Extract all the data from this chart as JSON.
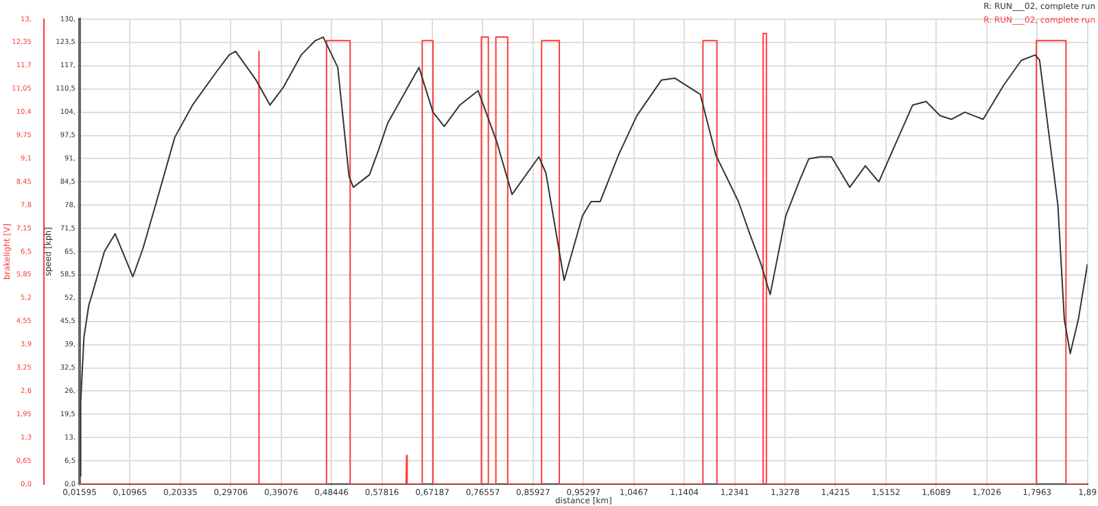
{
  "chart_data": {
    "type": "line",
    "xlabel": "distance [km]",
    "ylabel": "speed [kph]",
    "y2label": "brakelight [V]",
    "legend": "top right",
    "grid": true,
    "marker": "none",
    "line_style": "solid",
    "xlim": [
      0.01595,
      1.89
    ],
    "xticks": [
      {
        "value": 0.01595,
        "label": "0,01595"
      },
      {
        "value": 0.10965,
        "label": "0,10965"
      },
      {
        "value": 0.20335,
        "label": "0,20335"
      },
      {
        "value": 0.29706,
        "label": "0,29706"
      },
      {
        "value": 0.39076,
        "label": "0,39076"
      },
      {
        "value": 0.48446,
        "label": "0,48446"
      },
      {
        "value": 0.57816,
        "label": "0,57816"
      },
      {
        "value": 0.67187,
        "label": "0,67187"
      },
      {
        "value": 0.76557,
        "label": "0,76557"
      },
      {
        "value": 0.85927,
        "label": "0,85927"
      },
      {
        "value": 0.95297,
        "label": "0,95297"
      },
      {
        "value": 1.0467,
        "label": "1,0467"
      },
      {
        "value": 1.1404,
        "label": "1,1404"
      },
      {
        "value": 1.2341,
        "label": "1,2341"
      },
      {
        "value": 1.3278,
        "label": "1,3278"
      },
      {
        "value": 1.4215,
        "label": "1,4215"
      },
      {
        "value": 1.5152,
        "label": "1,5152"
      },
      {
        "value": 1.6089,
        "label": "1,6089"
      },
      {
        "value": 1.7026,
        "label": "1,7026"
      },
      {
        "value": 1.7963,
        "label": "1,7963"
      },
      {
        "value": 1.89,
        "label": "1,89"
      }
    ],
    "ylim": [
      0,
      130
    ],
    "yticks": [
      {
        "value": 0,
        "label": "0,0"
      },
      {
        "value": 6.5,
        "label": "6,5"
      },
      {
        "value": 13,
        "label": "13,"
      },
      {
        "value": 19.5,
        "label": "19,5"
      },
      {
        "value": 26,
        "label": "26,"
      },
      {
        "value": 32.5,
        "label": "32,5"
      },
      {
        "value": 39,
        "label": "39,"
      },
      {
        "value": 45.5,
        "label": "45,5"
      },
      {
        "value": 52,
        "label": "52,"
      },
      {
        "value": 58.5,
        "label": "58,5"
      },
      {
        "value": 65,
        "label": "65,"
      },
      {
        "value": 71.5,
        "label": "71,5"
      },
      {
        "value": 78,
        "label": "78,"
      },
      {
        "value": 84.5,
        "label": "84,5"
      },
      {
        "value": 91,
        "label": "91,"
      },
      {
        "value": 97.5,
        "label": "97,5"
      },
      {
        "value": 104,
        "label": "104,"
      },
      {
        "value": 110.5,
        "label": "110,5"
      },
      {
        "value": 117,
        "label": "117,"
      },
      {
        "value": 123.5,
        "label": "123,5"
      },
      {
        "value": 130,
        "label": "130,"
      }
    ],
    "y2lim": [
      0,
      13
    ],
    "y2ticks": [
      {
        "value": 0,
        "label": "0,0"
      },
      {
        "value": 0.65,
        "label": "0,65"
      },
      {
        "value": 1.3,
        "label": "1,3"
      },
      {
        "value": 1.95,
        "label": "1,95"
      },
      {
        "value": 2.6,
        "label": "2,6"
      },
      {
        "value": 3.25,
        "label": "3,25"
      },
      {
        "value": 3.9,
        "label": "3,9"
      },
      {
        "value": 4.55,
        "label": "4,55"
      },
      {
        "value": 5.2,
        "label": "5,2"
      },
      {
        "value": 5.85,
        "label": "5,85"
      },
      {
        "value": 6.5,
        "label": "6,5"
      },
      {
        "value": 7.15,
        "label": "7,15"
      },
      {
        "value": 7.8,
        "label": "7,8"
      },
      {
        "value": 8.45,
        "label": "8,45"
      },
      {
        "value": 9.1,
        "label": "9,1"
      },
      {
        "value": 9.75,
        "label": "9,75"
      },
      {
        "value": 10.4,
        "label": "10,4"
      },
      {
        "value": 11.05,
        "label": "11,05"
      },
      {
        "value": 11.7,
        "label": "11,7"
      },
      {
        "value": 12.35,
        "label": "12,35"
      },
      {
        "value": 13,
        "label": "13,"
      }
    ],
    "series": [
      {
        "name": "R: RUN___02, complete run",
        "color": "#333333",
        "x": [
          0.016,
          0.018,
          0.024,
          0.033,
          0.041,
          0.062,
          0.082,
          0.115,
          0.134,
          0.159,
          0.176,
          0.193,
          0.226,
          0.269,
          0.294,
          0.306,
          0.344,
          0.37,
          0.395,
          0.428,
          0.454,
          0.469,
          0.496,
          0.517,
          0.525,
          0.555,
          0.572,
          0.589,
          0.647,
          0.673,
          0.694,
          0.723,
          0.757,
          0.791,
          0.82,
          0.87,
          0.883,
          0.917,
          0.951,
          0.967,
          0.984,
          1.018,
          1.052,
          1.098,
          1.123,
          1.17,
          1.199,
          1.241,
          1.262,
          1.283,
          1.3,
          1.329,
          1.355,
          1.372,
          1.393,
          1.414,
          1.448,
          1.477,
          1.502,
          1.565,
          1.59,
          1.616,
          1.637,
          1.662,
          1.679,
          1.696,
          1.734,
          1.767,
          1.793,
          1.801,
          1.835,
          1.847,
          1.858,
          1.873,
          1.89
        ],
        "values": [
          2.3,
          23,
          41,
          50,
          54,
          65,
          70,
          58,
          66,
          79,
          88,
          97,
          106,
          115,
          120,
          121,
          113,
          106,
          111,
          120,
          124,
          125,
          116.5,
          86,
          83,
          86.5,
          93.5,
          101,
          116.5,
          104,
          100,
          106,
          110,
          96,
          81,
          91.5,
          87,
          57,
          75,
          79,
          79,
          92,
          103,
          113,
          113.5,
          109,
          92,
          79,
          70,
          61.5,
          53,
          75,
          85,
          91,
          91.5,
          91.5,
          83,
          89,
          84.5,
          106,
          107,
          103,
          102,
          104,
          103,
          102,
          111.5,
          118.5,
          120,
          118.5,
          78,
          46,
          36.5,
          46,
          61.5
        ]
      },
      {
        "name": "R: RUN___02, complete run",
        "color": "#ff3b3b",
        "axis": "y2",
        "x": [
          0.016,
          0.348,
          0.349,
          0.35,
          0.475,
          0.475,
          0.519,
          0.519,
          0.623,
          0.624,
          0.625,
          0.653,
          0.653,
          0.673,
          0.673,
          0.763,
          0.763,
          0.776,
          0.776,
          0.79,
          0.79,
          0.812,
          0.812,
          0.875,
          0.875,
          0.908,
          0.908,
          1.175,
          1.175,
          1.201,
          1.201,
          1.287,
          1.287,
          1.293,
          1.293,
          1.795,
          1.795,
          1.85,
          1.85,
          1.89
        ],
        "values": [
          0,
          0,
          12.1,
          0,
          0,
          12.4,
          12.4,
          0,
          0,
          0.8,
          0,
          0,
          12.4,
          12.4,
          0,
          0,
          12.5,
          12.5,
          0,
          0,
          12.5,
          12.5,
          0,
          0,
          12.4,
          12.4,
          0,
          0,
          12.4,
          12.4,
          0,
          0,
          12.6,
          12.6,
          0,
          0,
          12.4,
          12.4,
          0,
          0
        ]
      }
    ]
  }
}
